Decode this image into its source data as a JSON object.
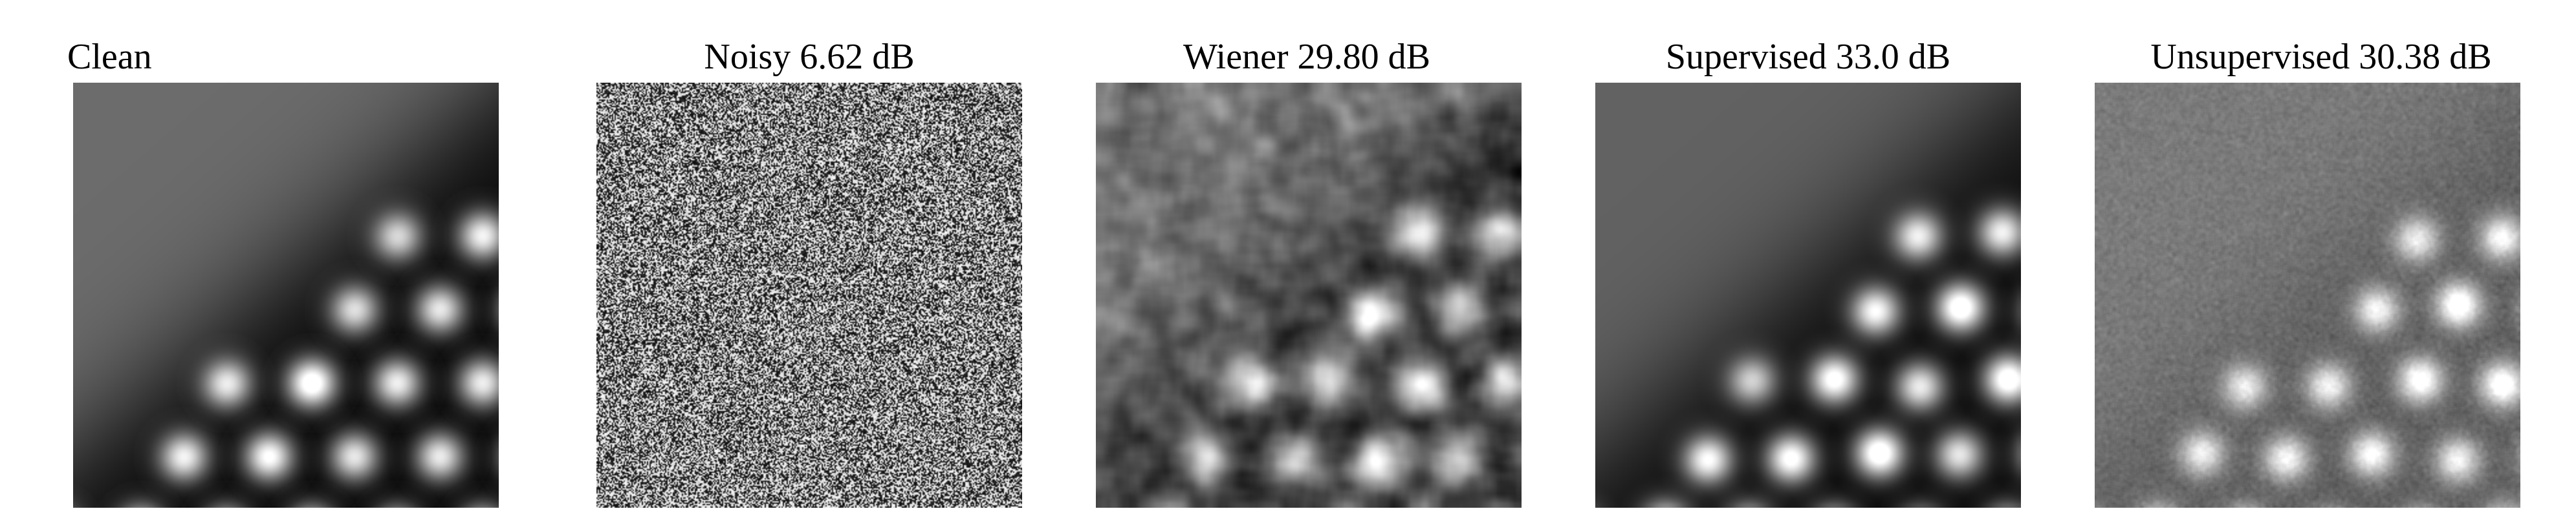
{
  "panels": [
    {
      "id": "clean",
      "title": "Clean",
      "kind": "clean",
      "seed": 11,
      "background": "#6c6c6c"
    },
    {
      "id": "noisy",
      "title": "Noisy 6.62 dB",
      "kind": "noisy",
      "seed": 23,
      "background": "#808080"
    },
    {
      "id": "wiener",
      "title": "Wiener 29.80 dB",
      "kind": "wiener",
      "seed": 37,
      "background": "#8a8a8a"
    },
    {
      "id": "supervised",
      "title": "Supervised 33.0 dB",
      "kind": "supervised",
      "seed": 51,
      "background": "#626262"
    },
    {
      "id": "unsupervised",
      "title": "Unsupervised 30.38 dB",
      "kind": "unsupervised",
      "seed": 67,
      "background": "#777777"
    }
  ]
}
